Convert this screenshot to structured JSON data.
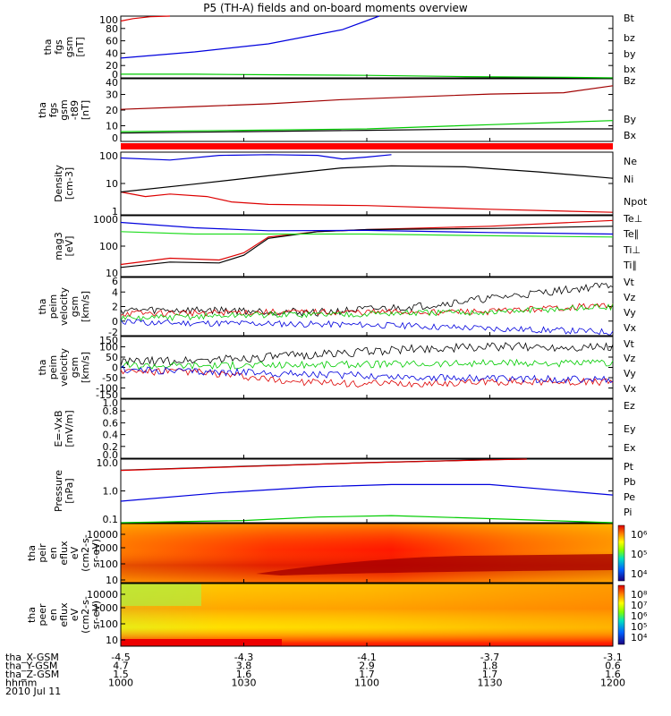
{
  "title": "P5 (TH-A) fields and on-board moments overview",
  "colors": {
    "black": "#000000",
    "red": "#dd0000",
    "green": "#00dd00",
    "blue": "#0000dd",
    "darkred": "#a00000",
    "lightgreen": "#22dd22"
  },
  "chart_data": [
    {
      "type": "line",
      "ylabel": [
        "tha",
        "fgs",
        "gsm",
        "[nT]"
      ],
      "yticks": [
        "100",
        "80",
        "60",
        "40",
        "20",
        "0"
      ],
      "ylim": [
        0,
        100
      ],
      "legend": [
        {
          "name": "Bt",
          "color": "#000000"
        },
        {
          "name": "bz",
          "color": "#dd0000"
        },
        {
          "name": "by",
          "color": "#00cc00"
        },
        {
          "name": "bx",
          "color": "#0000dd"
        }
      ],
      "series": [
        {
          "name": "bz",
          "x": [
            1000,
            1005,
            1012,
            1020
          ],
          "y": [
            92,
            96,
            99,
            100
          ]
        },
        {
          "name": "bx",
          "x": [
            1000,
            1030,
            1060,
            1090,
            1105
          ],
          "y": [
            32,
            42,
            55,
            78,
            100
          ]
        },
        {
          "name": "by",
          "x": [
            1000,
            1030,
            1060,
            1100,
            1140,
            1180,
            1200
          ],
          "y": [
            6,
            6,
            5,
            4,
            2,
            1,
            0
          ]
        }
      ]
    },
    {
      "type": "line",
      "ylabel": [
        "tha",
        "fgs",
        "gsm",
        "-t89",
        "[nT]"
      ],
      "yticks": [
        "40",
        "30",
        "20",
        "10",
        "0"
      ],
      "ylim": [
        -5,
        40
      ],
      "legend": [
        {
          "name": "Bz",
          "color": "#a00000"
        },
        {
          "name": "By",
          "color": "#00cc00"
        },
        {
          "name": "Bx",
          "color": "#000000"
        }
      ],
      "series": [
        {
          "name": "Bz",
          "x": [
            1000,
            1030,
            1060,
            1090,
            1120,
            1150,
            1180,
            1200
          ],
          "y": [
            18,
            20,
            22,
            25,
            27,
            29,
            30,
            35
          ]
        },
        {
          "name": "By",
          "x": [
            1000,
            1050,
            1100,
            1150,
            1200
          ],
          "y": [
            2,
            3,
            4,
            7,
            10
          ]
        },
        {
          "name": "Bx",
          "x": [
            1000,
            1050,
            1100,
            1150,
            1200
          ],
          "y": [
            1,
            2,
            3,
            4,
            4
          ]
        }
      ]
    },
    {
      "type": "line",
      "ylabel": [
        "Density",
        "[cm-3]"
      ],
      "yticks": [
        "100",
        "10",
        "1"
      ],
      "ylim": [
        0.8,
        200
      ],
      "scale": "log",
      "legend": [
        {
          "name": "Ne",
          "color": "#dd0000"
        },
        {
          "name": "Ni",
          "color": "#000000"
        },
        {
          "name": "Npot",
          "color": "#0000dd"
        }
      ],
      "series": [
        {
          "name": "Ne",
          "x": [
            1000,
            1010,
            1020,
            1035,
            1045,
            1060,
            1100,
            1150,
            1200
          ],
          "y": [
            6,
            4,
            5,
            4,
            2.5,
            2,
            1.8,
            1.3,
            1.0
          ]
        },
        {
          "name": "Ni",
          "x": [
            1000,
            1030,
            1060,
            1090,
            1110,
            1140,
            1170,
            1200
          ],
          "y": [
            6,
            12,
            25,
            50,
            60,
            55,
            35,
            20
          ]
        },
        {
          "name": "Npot",
          "x": [
            1000,
            1020,
            1040,
            1060,
            1080,
            1090,
            1100,
            1110
          ],
          "y": [
            120,
            100,
            150,
            160,
            150,
            110,
            130,
            160
          ]
        }
      ]
    },
    {
      "type": "line",
      "ylabel": [
        "mag3",
        "[eV]"
      ],
      "yticks": [
        "1000",
        "100",
        "10"
      ],
      "ylim": [
        10,
        1000
      ],
      "scale": "log",
      "legend": [
        {
          "name": "Te⊥",
          "color": "#dd0000"
        },
        {
          "name": "Te∥",
          "color": "#000000"
        },
        {
          "name": "Ti⊥",
          "color": "#0000dd"
        },
        {
          "name": "Ti∥",
          "color": "#22dd22"
        }
      ],
      "series": [
        {
          "name": "Te⊥",
          "x": [
            1000,
            1020,
            1040,
            1050,
            1060,
            1080,
            1100,
            1150,
            1200
          ],
          "y": [
            25,
            40,
            35,
            60,
            200,
            300,
            350,
            450,
            700
          ]
        },
        {
          "name": "Te∥",
          "x": [
            1000,
            1020,
            1040,
            1050,
            1060,
            1080,
            1100,
            1150,
            1200
          ],
          "y": [
            20,
            30,
            28,
            50,
            180,
            300,
            350,
            380,
            450
          ]
        },
        {
          "name": "Ti⊥",
          "x": [
            1000,
            1030,
            1060,
            1100,
            1150,
            1200
          ],
          "y": [
            600,
            400,
            320,
            330,
            280,
            250
          ]
        },
        {
          "name": "Ti∥",
          "x": [
            1000,
            1030,
            1060,
            1100,
            1150,
            1200
          ],
          "y": [
            300,
            250,
            250,
            250,
            220,
            200
          ]
        }
      ]
    },
    {
      "type": "line",
      "ylabel": [
        "tha",
        "peim",
        "velocity",
        "gsm",
        "[km/s]"
      ],
      "yticks": [
        "6",
        "4",
        "2",
        "0",
        "-2"
      ],
      "ylim": [
        -2,
        6
      ],
      "legend": [
        {
          "name": "Vt",
          "color": "#000000"
        },
        {
          "name": "Vz",
          "color": "#dd0000"
        },
        {
          "name": "Vy",
          "color": "#00cc00"
        },
        {
          "name": "Vx",
          "color": "#0000dd"
        }
      ],
      "series": [
        {
          "name": "Vt",
          "x": [
            1000,
            1040,
            1080,
            1120,
            1160,
            1200
          ],
          "y": [
            1.5,
            1.5,
            1.2,
            2.0,
            3.5,
            5.0
          ]
        },
        {
          "name": "Vz",
          "x": [
            1000,
            1050,
            1100,
            1150,
            1200
          ],
          "y": [
            1.0,
            1.2,
            1.2,
            1.3,
            2.2
          ]
        },
        {
          "name": "Vy",
          "x": [
            1000,
            1050,
            1100,
            1150,
            1200
          ],
          "y": [
            0.3,
            0.8,
            1.0,
            1.2,
            2.0
          ]
        },
        {
          "name": "Vx",
          "x": [
            1000,
            1050,
            1100,
            1150,
            1200
          ],
          "y": [
            -0.2,
            -0.3,
            -0.5,
            -1.0,
            -1.5
          ]
        }
      ]
    },
    {
      "type": "line",
      "ylabel": [
        "tha",
        "peim",
        "velocity",
        "gsm",
        "[km/s]"
      ],
      "yticks": [
        "150",
        "100",
        "50",
        "0",
        "-50",
        "-100",
        "-150"
      ],
      "ylim": [
        -150,
        150
      ],
      "legend": [
        {
          "name": "Vt",
          "color": "#000000"
        },
        {
          "name": "Vz",
          "color": "#dd0000"
        },
        {
          "name": "Vy",
          "color": "#00cc00"
        },
        {
          "name": "Vx",
          "color": "#0000dd"
        }
      ],
      "series": [
        {
          "name": "Vt",
          "x": [
            1000,
            1030,
            1060,
            1090,
            1120,
            1150,
            1200
          ],
          "y": [
            25,
            35,
            50,
            70,
            90,
            100,
            100
          ]
        },
        {
          "name": "Vz",
          "x": [
            1000,
            1030,
            1060,
            1090,
            1120,
            1150,
            1200
          ],
          "y": [
            -20,
            -20,
            -60,
            -80,
            -80,
            -70,
            -70
          ]
        },
        {
          "name": "Vy",
          "x": [
            1000,
            1050,
            1100,
            1150,
            1200
          ],
          "y": [
            10,
            10,
            15,
            20,
            20
          ]
        },
        {
          "name": "Vx",
          "x": [
            1000,
            1050,
            1100,
            1150,
            1200
          ],
          "y": [
            -10,
            -25,
            -40,
            -55,
            -60
          ]
        }
      ]
    },
    {
      "type": "line",
      "ylabel": [
        "E=-VxB",
        "[mV/m]"
      ],
      "yticks": [
        "1.0",
        "0.8",
        "0.6",
        "0.4",
        "0.2",
        "0.0"
      ],
      "ylim": [
        0,
        1
      ],
      "legend": [
        {
          "name": "Ez",
          "color": "#dd0000"
        },
        {
          "name": "Ey",
          "color": "#00cc00"
        },
        {
          "name": "Ex",
          "color": "#0000dd"
        }
      ],
      "series": []
    },
    {
      "type": "line",
      "ylabel": [
        "Pressure",
        "[nPa]"
      ],
      "yticks": [
        "10.0",
        "1.0",
        "0.1"
      ],
      "ylim": [
        0.05,
        10
      ],
      "scale": "log",
      "legend": [
        {
          "name": "Pt",
          "color": "#000000"
        },
        {
          "name": "Pb",
          "color": "#dd0000"
        },
        {
          "name": "Pe",
          "color": "#00cc00"
        },
        {
          "name": "Pi",
          "color": "#0000dd"
        }
      ],
      "series": [
        {
          "name": "Pt",
          "x": [
            1000,
            1050,
            1100,
            1150,
            1165
          ],
          "y": [
            4,
            5.5,
            7.5,
            9.5,
            10
          ]
        },
        {
          "name": "Pb",
          "x": [
            1000,
            1050,
            1100,
            1150,
            1165
          ],
          "y": [
            3.9,
            5.4,
            7.4,
            9.4,
            10
          ]
        },
        {
          "name": "Pe",
          "x": [
            1000,
            1050,
            1080,
            1110,
            1150,
            1200
          ],
          "y": [
            0.05,
            0.06,
            0.08,
            0.09,
            0.07,
            0.05
          ]
        },
        {
          "name": "Pi",
          "x": [
            1000,
            1040,
            1080,
            1110,
            1150,
            1200
          ],
          "y": [
            0.3,
            0.6,
            1.0,
            1.2,
            1.2,
            0.5
          ]
        }
      ]
    },
    {
      "type": "heatmap",
      "ylabel": [
        "tha",
        "peir",
        "en",
        "eflux",
        "eV",
        "(cm2-s-",
        "sr-eV)"
      ],
      "yticks": [
        "10000",
        "1000",
        "100",
        "10"
      ],
      "colorbar_ticks": [
        "10⁶",
        "10⁵",
        "10⁴"
      ]
    },
    {
      "type": "heatmap",
      "ylabel": [
        "tha",
        "peer",
        "en",
        "eflux",
        "eV",
        "(cm2-s-",
        "sr-eV)"
      ],
      "yticks": [
        "10000",
        "1000",
        "100",
        "10"
      ],
      "colorbar_ticks": [
        "10⁸",
        "10⁷",
        "10⁶",
        "10⁵",
        "10⁴"
      ]
    }
  ],
  "x_axis": {
    "ticks": [
      "1000",
      "1030",
      "1100",
      "1130",
      "1200"
    ],
    "rows": [
      {
        "label": "tha_X-GSM",
        "values": [
          "-4.5",
          "-4.3",
          "-4.1",
          "-3.7",
          "-3.1"
        ]
      },
      {
        "label": "tha_Y-GSM",
        "values": [
          "4.7",
          "3.8",
          "2.9",
          "1.8",
          "0.6"
        ]
      },
      {
        "label": "tha_Z-GSM",
        "values": [
          "1.5",
          "1.6",
          "1.7",
          "1.7",
          "1.6"
        ]
      },
      {
        "label": "hhmm",
        "values": [
          "1000",
          "1030",
          "1100",
          "1130",
          "1200"
        ]
      }
    ],
    "date": "2010 Jul 11"
  }
}
